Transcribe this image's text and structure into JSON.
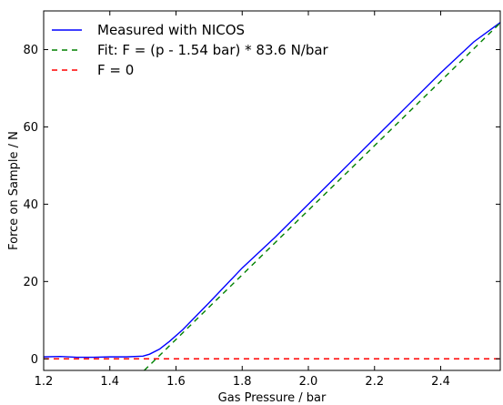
{
  "chart_data": {
    "type": "line",
    "xlabel": "Gas Pressure / bar",
    "ylabel": "Force on Sample / N",
    "xlim": [
      1.2,
      2.58
    ],
    "ylim": [
      -3,
      90
    ],
    "xticks": [
      1.2,
      1.4,
      1.6,
      1.8,
      2.0,
      2.2,
      2.4
    ],
    "xtick_labels": [
      "1.2",
      "1.4",
      "1.6",
      "1.8",
      "2.0",
      "2.2",
      "2.4"
    ],
    "yticks": [
      0,
      20,
      40,
      60,
      80
    ],
    "ytick_labels": [
      "0",
      "20",
      "40",
      "60",
      "80"
    ],
    "grid": false,
    "legend_position": "top-left",
    "series": [
      {
        "name": "Measured with NICOS",
        "color": "#0000ff",
        "style": "solid",
        "x": [
          1.2,
          1.25,
          1.3,
          1.35,
          1.4,
          1.45,
          1.5,
          1.52,
          1.55,
          1.58,
          1.62,
          1.7,
          1.8,
          1.9,
          2.0,
          2.1,
          2.2,
          2.3,
          2.4,
          2.5,
          2.58
        ],
        "y": [
          0.5,
          0.6,
          0.4,
          0.4,
          0.5,
          0.5,
          0.7,
          1.2,
          2.5,
          4.5,
          7.5,
          14.5,
          23.5,
          31.5,
          40.0,
          48.5,
          57.0,
          65.5,
          74.0,
          82.0,
          87.0
        ]
      },
      {
        "name": "Fit: F = (p - 1.54 bar) * 83.6 N/bar",
        "color": "#008000",
        "style": "dashed",
        "x": [
          1.504,
          2.58
        ],
        "y": [
          -3.0,
          86.9
        ]
      },
      {
        "name": "F = 0",
        "color": "#ff0000",
        "style": "dashed",
        "x": [
          1.2,
          2.58
        ],
        "y": [
          0,
          0
        ]
      }
    ]
  }
}
